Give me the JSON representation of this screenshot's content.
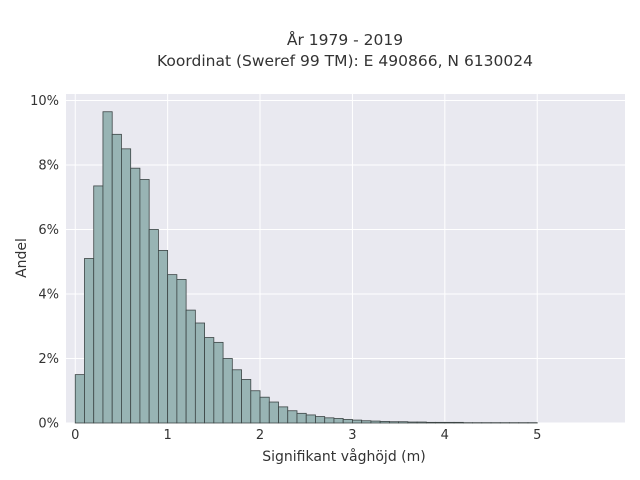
{
  "chart_data": {
    "type": "bar",
    "title_lines": [
      "År 1979 - 2019",
      "Koordinat (Sweref 99 TM): E 490866, N 6130024"
    ],
    "xlabel": "Signifikant våghöjd (m)",
    "ylabel": "Andel",
    "x_ticks": [
      "0",
      "1",
      "2",
      "3",
      "4",
      "5"
    ],
    "y_ticks": [
      "0%",
      "2%",
      "4%",
      "6%",
      "8%",
      "10%"
    ],
    "xlim": [
      -0.1,
      5.95
    ],
    "ylim": [
      0,
      10.2
    ],
    "bin_width": 0.1,
    "bin_start": 0.0,
    "values": [
      1.5,
      5.1,
      7.35,
      9.65,
      8.95,
      8.5,
      7.9,
      7.55,
      6.0,
      5.35,
      4.6,
      4.45,
      3.5,
      3.1,
      2.65,
      2.5,
      2.0,
      1.65,
      1.35,
      1.0,
      0.8,
      0.65,
      0.5,
      0.38,
      0.3,
      0.25,
      0.2,
      0.16,
      0.14,
      0.11,
      0.09,
      0.07,
      0.06,
      0.05,
      0.04,
      0.04,
      0.03,
      0.03,
      0.02,
      0.02,
      0.02,
      0.02,
      0.01,
      0.01,
      0.01,
      0.01,
      0.01,
      0.01,
      0.01,
      0.01
    ],
    "colors": {
      "bar_fill": "#98b4b4",
      "bar_edge": "#3c4545",
      "plot_bg": "#e9e9f0",
      "grid": "#ffffff"
    },
    "grid": true,
    "legend": "none"
  }
}
